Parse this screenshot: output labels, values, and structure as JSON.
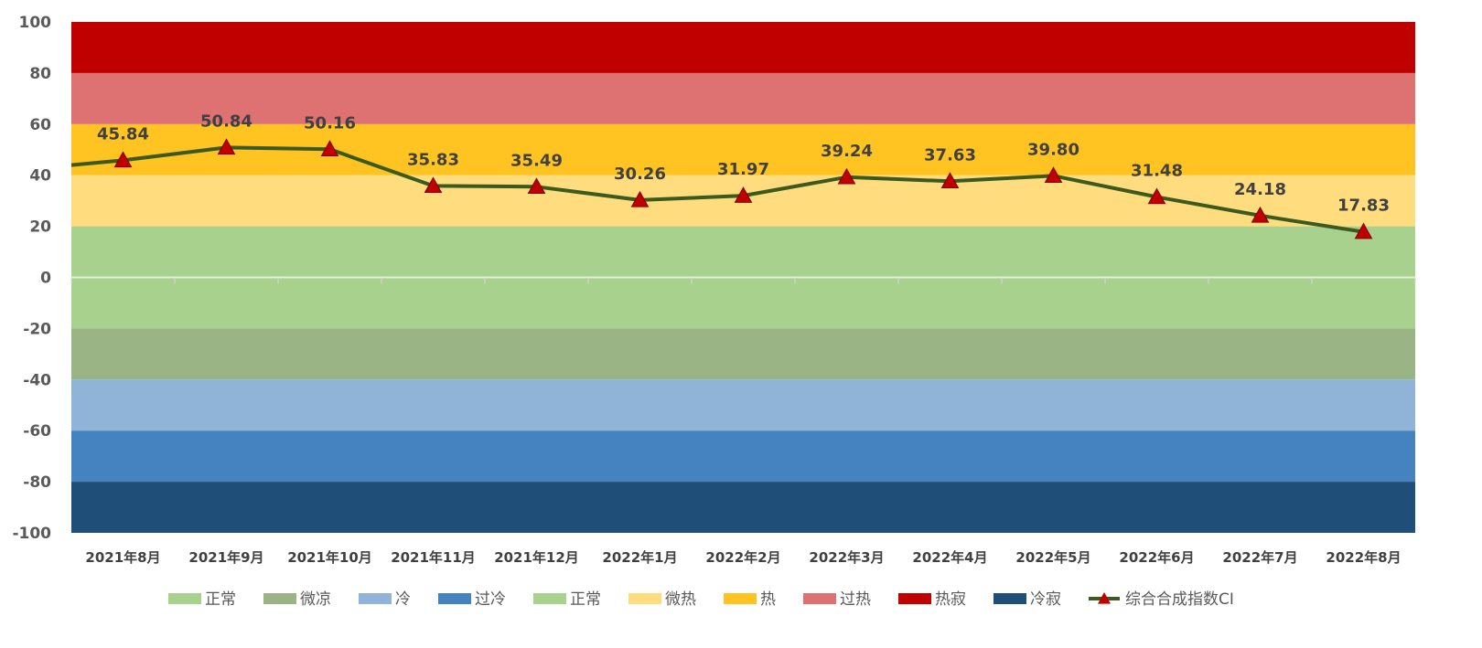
{
  "chart_data": {
    "type": "line",
    "title": "",
    "xlabel": "",
    "ylabel": "",
    "ylim": [
      -100,
      100
    ],
    "yticks": [
      100,
      80,
      60,
      40,
      20,
      0,
      -20,
      -40,
      -60,
      -80,
      -100
    ],
    "categories": [
      "2021年8月",
      "2021年9月",
      "2021年10月",
      "2021年11月",
      "2021年12月",
      "2022年1月",
      "2022年2月",
      "2022年3月",
      "2022年4月",
      "2022年5月",
      "2022年6月",
      "2022年7月",
      "2022年8月"
    ],
    "series": [
      {
        "name": "综合合成指数CI",
        "values": [
          45.84,
          50.84,
          50.16,
          35.83,
          35.49,
          30.26,
          31.97,
          39.24,
          37.63,
          39.8,
          31.48,
          24.18,
          17.83
        ],
        "labels": [
          "45.84",
          "50.84",
          "50.16",
          "35.83",
          "35.49",
          "30.26",
          "31.97",
          "39.24",
          "37.63",
          "39.80",
          "31.48",
          "24.18",
          "17.83"
        ],
        "line_color": "#3D5A1E",
        "marker": "triangle",
        "marker_color": "#C00000"
      }
    ],
    "bands": [
      {
        "name": "正常",
        "from": -20,
        "to": 0,
        "color": "#A9D18E"
      },
      {
        "name": "微凉",
        "from": -40,
        "to": -20,
        "color": "#9BB486"
      },
      {
        "name": "冷",
        "from": -60,
        "to": -40,
        "color": "#8FB4D8"
      },
      {
        "name": "过冷",
        "from": -80,
        "to": -60,
        "color": "#4583C0"
      },
      {
        "name": "正常",
        "from": 0,
        "to": 20,
        "color": "#A9D18E"
      },
      {
        "name": "微热",
        "from": 20,
        "to": 40,
        "color": "#FFDD7F"
      },
      {
        "name": "热",
        "from": 40,
        "to": 60,
        "color": "#FFC421"
      },
      {
        "name": "过热",
        "from": 60,
        "to": 80,
        "color": "#DE7171"
      },
      {
        "name": "热寂",
        "from": 80,
        "to": 100,
        "color": "#C00000"
      },
      {
        "name": "冷寂",
        "from": -100,
        "to": -80,
        "color": "#1F4E79"
      }
    ],
    "legend_position": "bottom",
    "grid": false
  }
}
